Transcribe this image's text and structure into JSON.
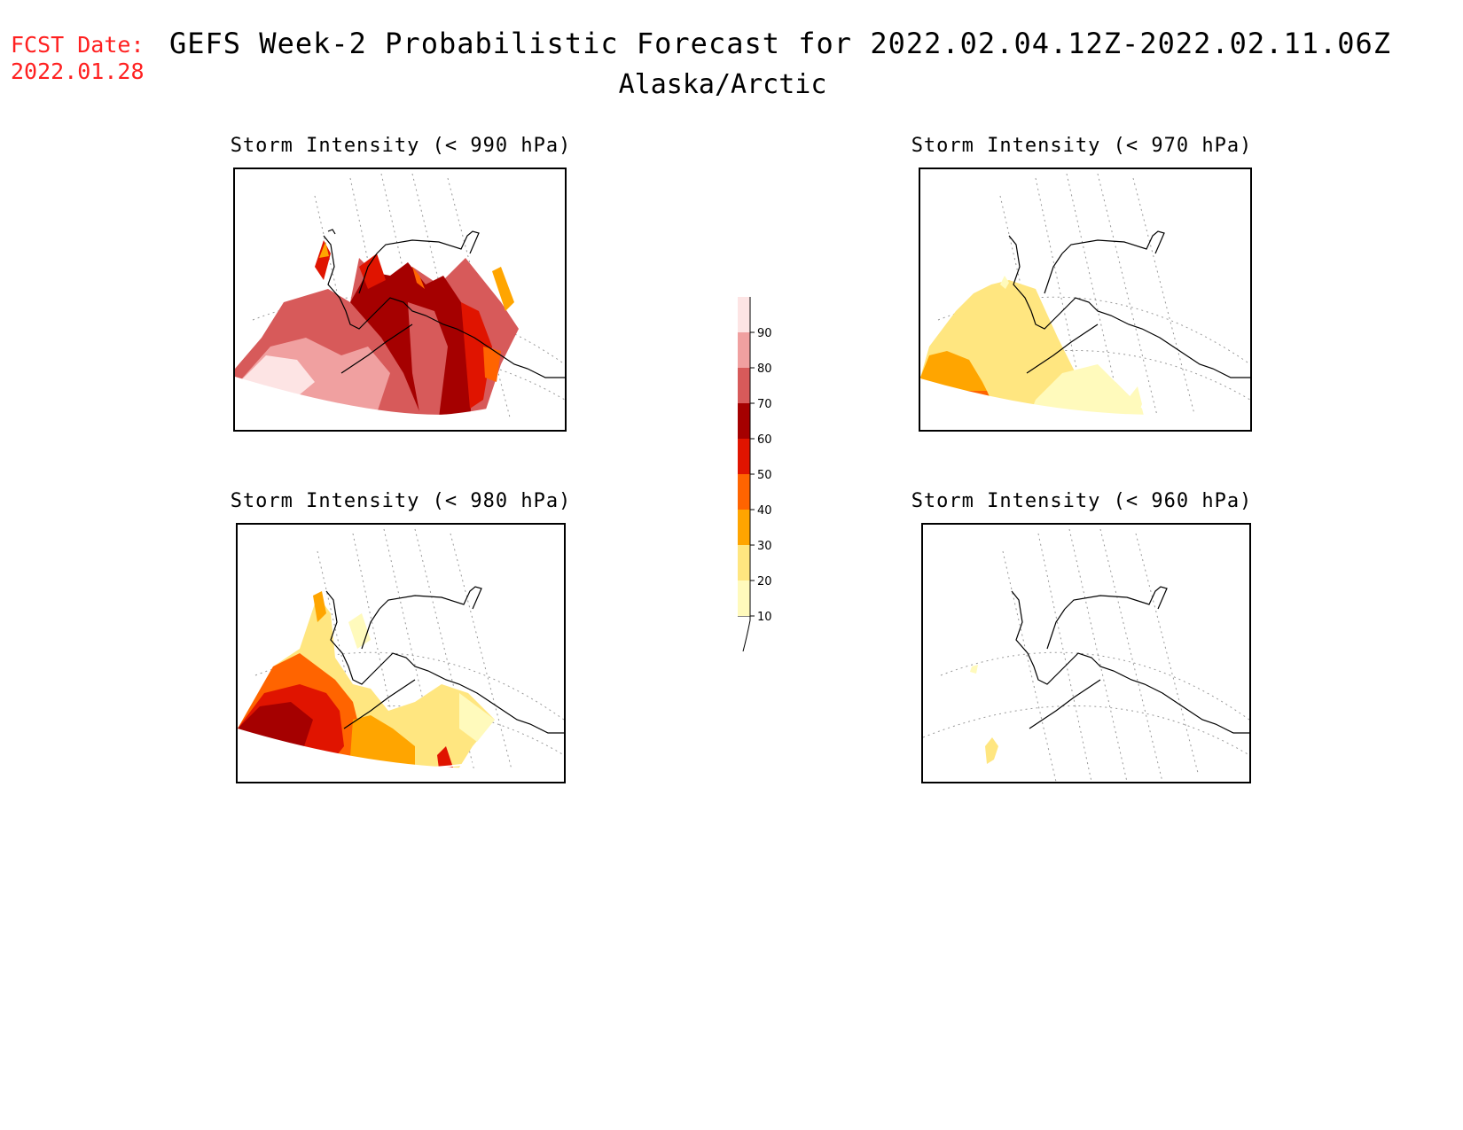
{
  "header": {
    "fcst_label": "FCST Date:",
    "fcst_date": "2022.01.28",
    "title": "GEFS Week-2 Probabilistic Forecast for 2022.02.04.12Z-2022.02.11.06Z",
    "subtitle": "Alaska/Arctic"
  },
  "panels": [
    {
      "id": "p990",
      "title": "Storm Intensity (< 990 hPa)"
    },
    {
      "id": "p970",
      "title": "Storm Intensity (< 970 hPa)"
    },
    {
      "id": "p980",
      "title": "Storm Intensity (< 980 hPa)"
    },
    {
      "id": "p960",
      "title": "Storm Intensity (< 960 hPa)"
    }
  ],
  "colorbar": {
    "levels": [
      "10",
      "20",
      "30",
      "40",
      "50",
      "60",
      "70",
      "80",
      "90"
    ],
    "colors": [
      "#fffabc",
      "#ffe680",
      "#ffa500",
      "#ff6400",
      "#e01400",
      "#a50000",
      "#d75a5a",
      "#f0a0a0",
      "#fde4e4"
    ]
  },
  "colors": {
    "header_date": "#ff2020"
  }
}
